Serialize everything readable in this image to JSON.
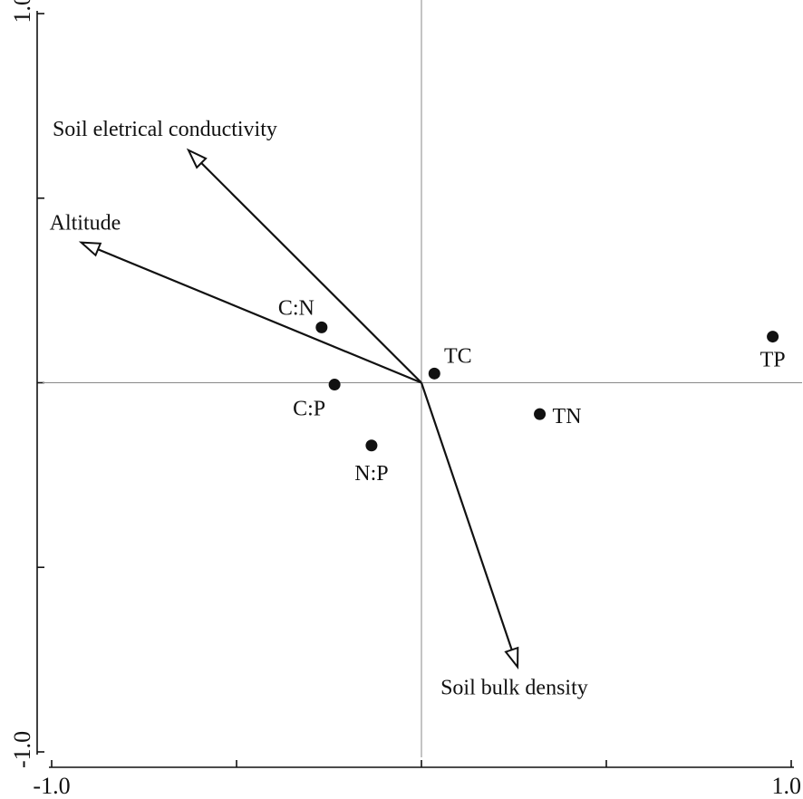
{
  "chart_data": {
    "type": "scatter",
    "subtype": "biplot",
    "title": "",
    "xlabel": "",
    "ylabel": "",
    "xlim": [
      -1.0,
      1.0
    ],
    "ylim": [
      -1.0,
      1.0
    ],
    "x_tick_labels": [
      {
        "value": -1.0,
        "label": "-1.0"
      },
      {
        "value": 1.0,
        "label": "1.0"
      }
    ],
    "y_tick_labels": [
      {
        "value": 1.0,
        "label": "1.0"
      },
      {
        "value": -1.0,
        "label": "-1.0"
      }
    ],
    "minor_ticks": [
      -1.0,
      -0.5,
      0.0,
      0.5,
      1.0
    ],
    "grid": false,
    "zero_lines": true,
    "colors": {
      "marks": "#111111",
      "zero_lines": "#888888"
    },
    "vectors": [
      {
        "name": "Soil eletrical conductivity",
        "x": -0.63,
        "y": 0.63
      },
      {
        "name": "Altitude",
        "x": -0.92,
        "y": 0.38
      },
      {
        "name": "Soil bulk density",
        "x": 0.26,
        "y": -0.77
      }
    ],
    "points": [
      {
        "name": "C:N",
        "x": -0.27,
        "y": 0.15
      },
      {
        "name": "C:P",
        "x": -0.235,
        "y": -0.005
      },
      {
        "name": "TC",
        "x": 0.035,
        "y": 0.025
      },
      {
        "name": "TN",
        "x": 0.32,
        "y": -0.085
      },
      {
        "name": "N:P",
        "x": -0.135,
        "y": -0.17
      },
      {
        "name": "TP",
        "x": 0.95,
        "y": 0.125
      }
    ]
  }
}
